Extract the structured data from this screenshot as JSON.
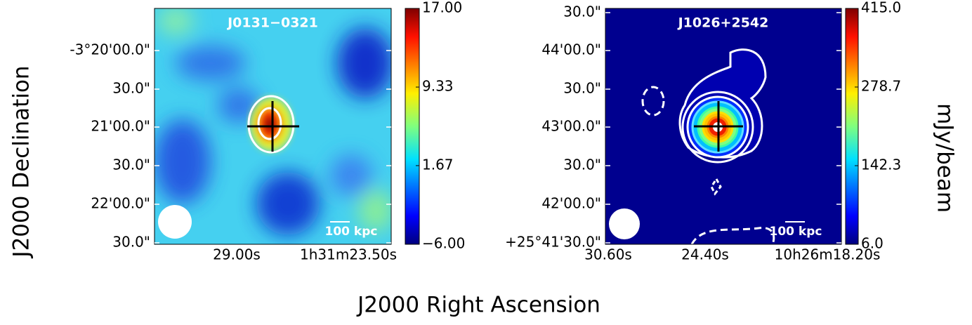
{
  "xlabel": "J2000 Right Ascension",
  "ylabel": "J2000 Declination",
  "colorbar_label": "mJy/beam",
  "chart_data": [
    {
      "type": "image",
      "title": "J0131−0321",
      "xticks": [
        "29.00s",
        "1h31m23.50s"
      ],
      "yticks": [
        "-3°20'00.0\"",
        "30.0\"",
        "21'00.0\"",
        "30.0\"",
        "22'00.0\"",
        "30.0\""
      ],
      "scale_bar": "100 kpc",
      "colorbar": {
        "lim": [
          -6,
          17
        ],
        "ticks": [
          {
            "value": -6,
            "label": "−6.00"
          },
          1.67,
          9.33,
          {
            "value": 17,
            "label": "17.00"
          }
        ]
      }
    },
    {
      "type": "image",
      "title": "J1026+2542",
      "xticks": [
        "30.60s",
        "24.40s",
        "10h26m18.20s"
      ],
      "yticks": [
        "30.0\"",
        "44'00.0\"",
        "30.0\"",
        "43'00.0\"",
        "30.0\"",
        "42'00.0\"",
        "+25°41'30.0\""
      ],
      "scale_bar": "100 kpc",
      "colorbar": {
        "lim": [
          6.0,
          415.0
        ],
        "ticks": [
          {
            "value": 6.0,
            "label": "6.0"
          },
          142.3,
          278.7,
          {
            "value": 415.0,
            "label": "415.0"
          }
        ]
      }
    }
  ]
}
